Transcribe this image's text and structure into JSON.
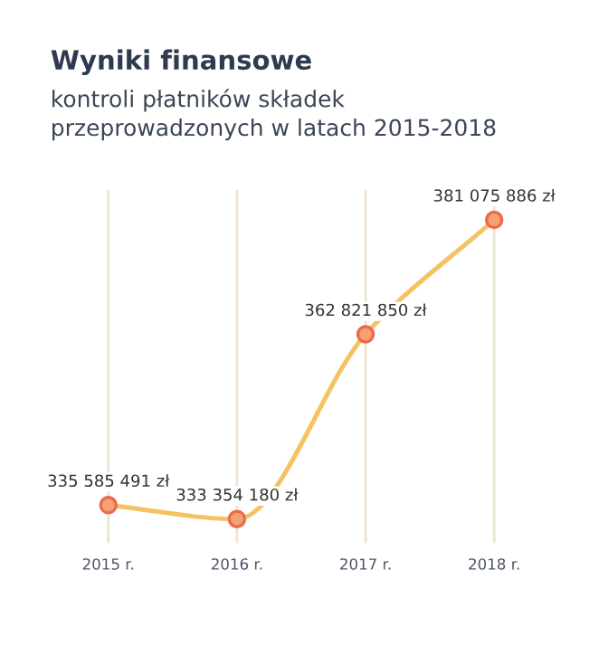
{
  "chart_data": {
    "type": "line",
    "title": "Wyniki finansowe",
    "subtitle": "kontroli płatników składek\nprzeprowadzonych w latach 2015-2018",
    "categories": [
      "2015 r.",
      "2016 r.",
      "2017 r.",
      "2018 r."
    ],
    "series": [
      {
        "color": "#f5c263",
        "values": [
          335585491,
          333354180,
          362821850,
          381075886
        ],
        "value_labels": [
          "335 585 491 zł",
          "333 354 180 zł",
          "362 821 850 zł",
          "381 075 886 zł"
        ]
      }
    ],
    "marker": "circle",
    "grid": "x",
    "legend": false
  }
}
